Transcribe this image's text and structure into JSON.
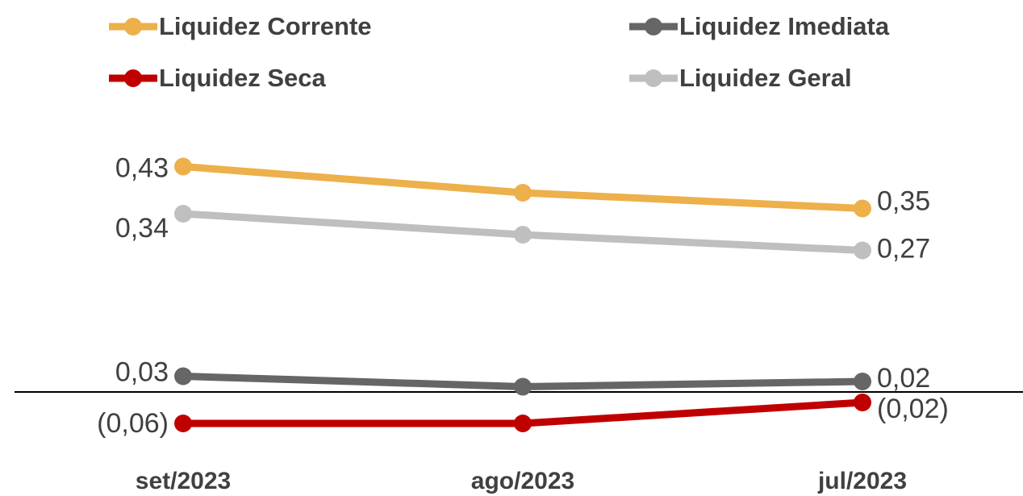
{
  "chart_data": {
    "type": "line",
    "categories": [
      "set/2023",
      "ago/2023",
      "jul/2023"
    ],
    "ylim": [
      -0.1,
      0.5
    ],
    "legend": "top",
    "series": [
      {
        "name": "Liquidez Corrente",
        "color": "#EDB04A",
        "values": [
          0.43,
          0.38,
          0.35
        ],
        "value_labels": [
          "0,43",
          null,
          "0,35"
        ]
      },
      {
        "name": "Liquidez Imediata",
        "color": "#666666",
        "values": [
          0.03,
          0.01,
          0.02
        ],
        "value_labels": [
          "0,03",
          null,
          "0,02"
        ]
      },
      {
        "name": "Liquidez Seca",
        "color": "#C00000",
        "values": [
          -0.06,
          -0.06,
          -0.02
        ],
        "value_labels": [
          "(0,06)",
          null,
          "(0,02)"
        ]
      },
      {
        "name": "Liquidez Geral",
        "color": "#BFBFBF",
        "values": [
          0.34,
          0.3,
          0.27
        ],
        "value_labels": [
          "0,34",
          null,
          "0,27"
        ]
      }
    ]
  }
}
